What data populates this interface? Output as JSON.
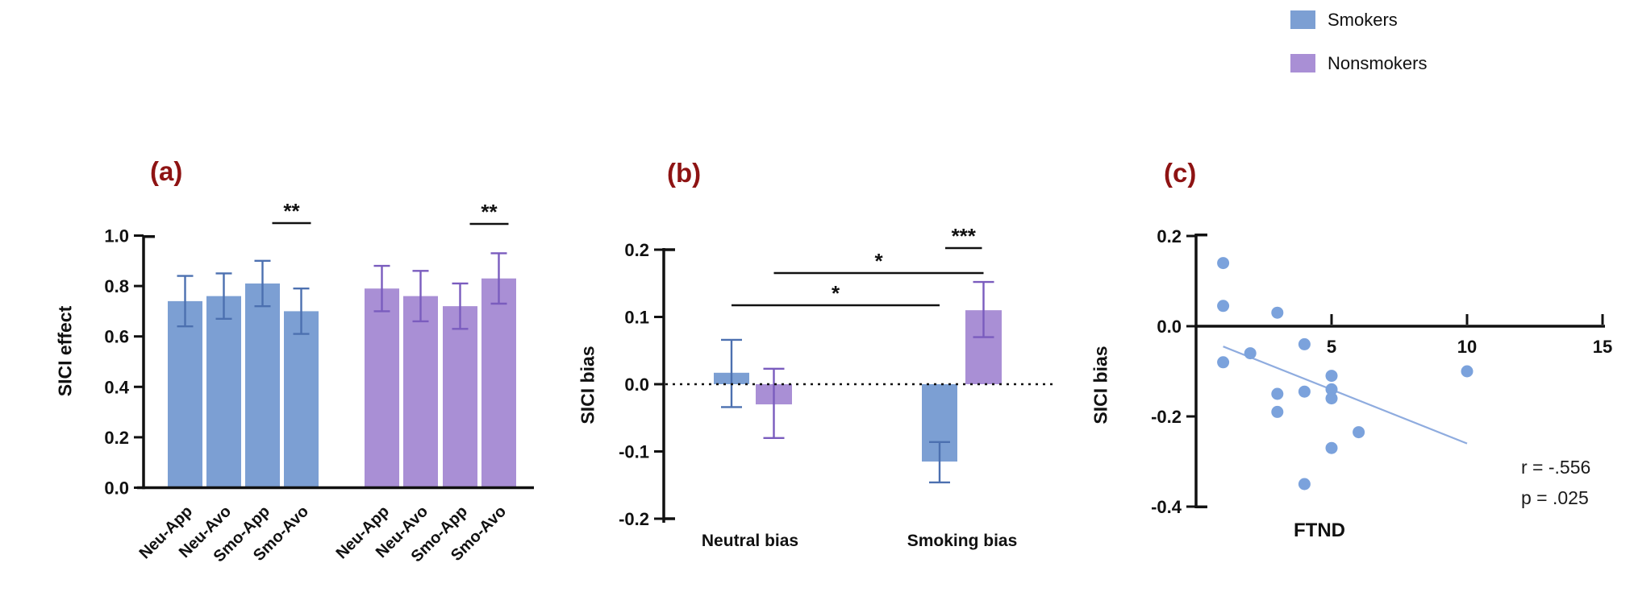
{
  "legend": {
    "items": [
      {
        "label": "Smokers",
        "color": "#7C9FD3"
      },
      {
        "label": "Nonsmokers",
        "color": "#A98FD5"
      }
    ]
  },
  "chart_data": [
    {
      "type": "bar",
      "panel_label": "(a)",
      "ylabel": "SICI effect",
      "ylim": [
        0.0,
        1.0
      ],
      "yticks": [
        "0.0",
        "0.2",
        "0.4",
        "0.6",
        "0.8",
        "1.0"
      ],
      "categories": [
        "Neu-App",
        "Neu-Avo",
        "Smo-App",
        "Smo-Avo"
      ],
      "series": [
        {
          "name": "Smokers",
          "color": "#7C9FD3",
          "error_color": "#4C70B0",
          "values": [
            0.74,
            0.76,
            0.81,
            0.7
          ],
          "errors": [
            0.1,
            0.09,
            0.09,
            0.09
          ]
        },
        {
          "name": "Nonsmokers",
          "color": "#A98FD5",
          "error_color": "#7A5CBE",
          "values": [
            0.79,
            0.76,
            0.72,
            0.83
          ],
          "errors": [
            0.09,
            0.1,
            0.09,
            0.1
          ]
        }
      ],
      "significance": [
        {
          "label": "**",
          "series": "Smokers",
          "between": [
            "Smo-App",
            "Smo-Avo"
          ]
        },
        {
          "label": "**",
          "series": "Nonsmokers",
          "between": [
            "Smo-App",
            "Smo-Avo"
          ]
        }
      ]
    },
    {
      "type": "bar",
      "panel_label": "(b)",
      "ylabel": "SICI bias",
      "ylim": [
        -0.2,
        0.2
      ],
      "yticks": [
        "0.2",
        "0.1",
        "0.0",
        "-0.1",
        "-0.2"
      ],
      "categories": [
        "Neutral bias",
        "Smoking bias"
      ],
      "zero_line": "dotted",
      "series": [
        {
          "name": "Smokers",
          "color": "#7C9FD3",
          "error_color": "#4C70B0",
          "values": [
            0.017,
            -0.115
          ],
          "error_low": [
            -0.034,
            -0.146
          ],
          "error_high": [
            0.066,
            -0.086
          ]
        },
        {
          "name": "Nonsmokers",
          "color": "#A98FD5",
          "error_color": "#7A5CBE",
          "values": [
            -0.03,
            0.11
          ],
          "error_low": [
            -0.08,
            0.07
          ],
          "error_high": [
            0.023,
            0.152
          ]
        }
      ],
      "significance": [
        {
          "label": "*",
          "series_pair": [
            "Smokers",
            "Smokers"
          ],
          "categories": [
            "Neutral bias",
            "Smoking bias"
          ]
        },
        {
          "label": "*",
          "series_pair": [
            "Nonsmokers",
            "Nonsmokers"
          ],
          "categories": [
            "Neutral bias",
            "Smoking bias"
          ]
        },
        {
          "label": "***",
          "series_pair": [
            "Smokers",
            "Nonsmokers"
          ],
          "categories": [
            "Smoking bias",
            "Smoking bias"
          ]
        }
      ]
    },
    {
      "type": "scatter",
      "panel_label": "(c)",
      "xlabel": "FTND",
      "ylabel": "SICI bias",
      "xlim": [
        0,
        15
      ],
      "xticks": [
        "5",
        "10",
        "15"
      ],
      "ylim": [
        -0.4,
        0.2
      ],
      "yticks": [
        "0.2",
        "0.0",
        "-0.2",
        "-0.4"
      ],
      "point_color": "#7BA2DC",
      "points": [
        [
          1,
          0.14
        ],
        [
          1,
          0.045
        ],
        [
          3,
          0.03
        ],
        [
          2,
          -0.06
        ],
        [
          1,
          -0.08
        ],
        [
          4,
          -0.04
        ],
        [
          5,
          -0.11
        ],
        [
          10,
          -0.1
        ],
        [
          3,
          -0.15
        ],
        [
          4,
          -0.145
        ],
        [
          5,
          -0.14
        ],
        [
          5,
          -0.16
        ],
        [
          3,
          -0.19
        ],
        [
          6,
          -0.235
        ],
        [
          5,
          -0.27
        ],
        [
          4,
          -0.35
        ]
      ],
      "trendline": {
        "x1": 1,
        "y1": -0.045,
        "x2": 10,
        "y2": -0.26,
        "color": "#8FACDF"
      },
      "stats": {
        "r": "r = -.556",
        "p": "p = .025"
      }
    }
  ]
}
